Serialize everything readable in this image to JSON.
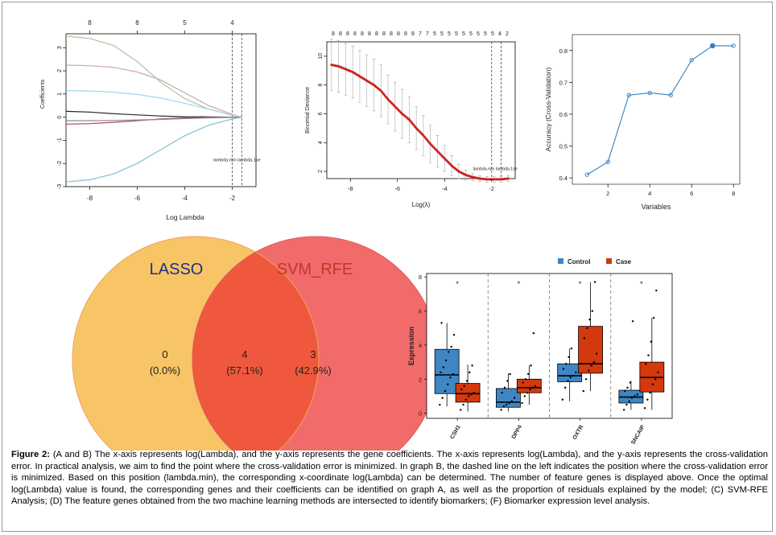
{
  "caption": {
    "label": "Figure 2:",
    "text": " (A and B) The x-axis represents log(Lambda), and the y-axis represents the gene coefficients. The x-axis represents log(Lambda), and the y-axis represents the cross-validation error. In practical analysis, we aim to find the point where the cross-validation error is minimized. In graph B, the dashed line on the left indicates the position where the cross-validation error is minimized. Based on this position (lambda.min), the corresponding x-coordinate log(Lambda) can be determined. The number of feature genes is displayed above. Once the optimal log(Lambda) value is found, the corresponding genes and their coefficients can be identified on graph A, as well as the proportion of residuals explained by the model; (C) SVM-RFE Analysis; (D) The feature genes obtained from the two machine learning methods are intersected to identify biomarkers; (F) Biomarker expression level analysis."
  },
  "chart_data": [
    {
      "type": "line",
      "panel": "A",
      "xlabel": "Log Lambda",
      "ylabel": "Coefficients",
      "xlim": [
        -9,
        -1
      ],
      "ylim": [
        -3,
        3.6
      ],
      "x_ticks": [
        "-8",
        "-6",
        "-4",
        "-2"
      ],
      "y_ticks": [
        "-3",
        "-2",
        "-1",
        "0",
        "1",
        "2",
        "3"
      ],
      "top_ticks": [
        "8",
        "8",
        "5",
        "4"
      ],
      "top_tick_x": [
        -8,
        -6,
        -4,
        -2
      ],
      "vlines": [
        -2,
        -1.6
      ],
      "vline_label": "lambda.min  lambda.1se",
      "series": [
        {
          "color": "#a7c79a",
          "x": [
            -9,
            -8,
            -7,
            -6,
            -5,
            -4,
            -3,
            -2,
            -1.6
          ],
          "values": [
            3.5,
            3.4,
            3.1,
            2.4,
            1.5,
            0.8,
            0.35,
            0.08,
            0
          ]
        },
        {
          "color": "#c6a6b6",
          "x": [
            -9,
            -8,
            -7,
            -6,
            -5,
            -4,
            -3,
            -2,
            -1.6
          ],
          "values": [
            2.25,
            2.22,
            2.15,
            1.95,
            1.6,
            1.05,
            0.5,
            0.12,
            0
          ]
        },
        {
          "color": "#9fd7e8",
          "x": [
            -9,
            -8,
            -7,
            -6,
            -5,
            -4,
            -3,
            -2,
            -1.6
          ],
          "values": [
            1.15,
            1.13,
            1.08,
            0.98,
            0.82,
            0.6,
            0.35,
            0.1,
            0
          ]
        },
        {
          "color": "#222222",
          "x": [
            -9,
            -8,
            -7,
            -6,
            -5,
            -4,
            -3,
            -2,
            -1.6
          ],
          "values": [
            0.25,
            0.22,
            0.15,
            0.1,
            0.05,
            0.02,
            0.01,
            0,
            0
          ]
        },
        {
          "color": "#b04060",
          "x": [
            -9,
            -8,
            -7,
            -6,
            -5,
            -4,
            -3,
            -2,
            -1.6
          ],
          "values": [
            -0.3,
            -0.28,
            -0.22,
            -0.15,
            -0.08,
            -0.03,
            -0.01,
            0,
            0
          ]
        },
        {
          "color": "#8e8e8e",
          "x": [
            -9,
            -8,
            -7,
            -6,
            -5,
            -4,
            -3,
            -2,
            -1.6
          ],
          "values": [
            -0.15,
            -0.15,
            -0.14,
            -0.12,
            -0.1,
            -0.06,
            -0.03,
            -0.01,
            0
          ]
        },
        {
          "color": "#7fc2d0",
          "x": [
            -9,
            -8,
            -7,
            -6,
            -5,
            -4,
            -3,
            -2,
            -1.6
          ],
          "values": [
            -2.8,
            -2.7,
            -2.45,
            -2.0,
            -1.4,
            -0.8,
            -0.35,
            -0.08,
            0
          ]
        }
      ]
    },
    {
      "type": "scatter",
      "panel": "B",
      "xlabel": "Log(λ)",
      "ylabel": "Binomial Deviance",
      "xlim": [
        -9,
        -1
      ],
      "ylim": [
        1.5,
        11
      ],
      "x_ticks": [
        "-8",
        "-6",
        "-4",
        "-2"
      ],
      "y_ticks": [
        "2",
        "4",
        "6",
        "8",
        "10"
      ],
      "top_numbers": [
        "8",
        "8",
        "8",
        "8",
        "8",
        "8",
        "8",
        "8",
        "8",
        "8",
        "8",
        "8",
        "7",
        "7",
        "5",
        "5",
        "5",
        "5",
        "5",
        "5",
        "5",
        "5",
        "5",
        "4",
        "2"
      ],
      "vlines": [
        -2,
        -1.6
      ],
      "vline_label": "lambda.min  lambda.1se",
      "x": [
        -8.8,
        -8.5,
        -8.2,
        -7.9,
        -7.6,
        -7.3,
        -7.0,
        -6.7,
        -6.4,
        -6.1,
        -5.8,
        -5.5,
        -5.2,
        -4.9,
        -4.6,
        -4.3,
        -4.0,
        -3.7,
        -3.4,
        -3.1,
        -2.8,
        -2.5,
        -2.2,
        -1.9,
        -1.6,
        -1.3
      ],
      "values": [
        9.4,
        9.3,
        9.1,
        8.9,
        8.6,
        8.3,
        8.0,
        7.6,
        7.0,
        6.5,
        6.0,
        5.6,
        5.0,
        4.5,
        3.9,
        3.4,
        2.9,
        2.4,
        2.0,
        1.75,
        1.6,
        1.5,
        1.45,
        1.45,
        1.45,
        1.5
      ],
      "error": [
        1.8,
        1.8,
        1.8,
        1.8,
        1.8,
        1.8,
        1.8,
        1.8,
        1.7,
        1.7,
        1.7,
        1.6,
        1.5,
        1.4,
        1.3,
        1.1,
        0.9,
        0.7,
        0.5,
        0.35,
        0.25,
        0.2,
        0.2,
        0.2,
        0.2,
        0.2
      ],
      "point_color": "#cc2222"
    },
    {
      "type": "line",
      "panel": "C",
      "xlabel": "Variables",
      "ylabel": "Accuracy (Cross-Validation)",
      "xlim": [
        0.3,
        8.3
      ],
      "ylim": [
        0.38,
        0.85
      ],
      "x_ticks": [
        "2",
        "4",
        "6",
        "8"
      ],
      "y_ticks": [
        "0.4",
        "0.5",
        "0.6",
        "0.7",
        "0.8"
      ],
      "x": [
        1,
        2,
        3,
        4,
        5,
        6,
        7,
        8
      ],
      "values": [
        0.41,
        0.45,
        0.66,
        0.667,
        0.66,
        0.77,
        0.815,
        0.815
      ],
      "color": "#2f7fc1",
      "highlight_index": 6
    },
    {
      "type": "venn",
      "panel": "D",
      "sets": [
        {
          "name": "LASSO",
          "color": "#f7c566",
          "label_color": "#1f2d8a"
        },
        {
          "name": "SVM_RFE",
          "color": "#f26b6b",
          "label_color": "#c0392b"
        }
      ],
      "regions": [
        {
          "count": "0",
          "pct": "(0.0%)"
        },
        {
          "count": "4",
          "pct": "(57.1%)",
          "color": "#f0583d"
        },
        {
          "count": "3",
          "pct": "(42.9%)"
        }
      ]
    },
    {
      "type": "box",
      "panel": "F",
      "ylabel": "Expression",
      "ylim": [
        -0.3,
        8.2
      ],
      "y_ticks": [
        "0",
        "2",
        "4",
        "6",
        "8"
      ],
      "legend": [
        {
          "name": "Control",
          "color": "#3f86c4"
        },
        {
          "name": "Case",
          "color": "#d4380d"
        }
      ],
      "categories": [
        "CSH1",
        "DPP4",
        "OXTR",
        "SNCAIP"
      ],
      "sig": [
        "*",
        "*",
        "*",
        "*"
      ],
      "boxes": [
        {
          "group": "Control",
          "min": 0.4,
          "q1": 1.15,
          "median": 2.25,
          "q3": 3.75,
          "max": 5.3,
          "points": [
            0.5,
            0.9,
            1.3,
            1.7,
            2.1,
            2.3,
            2.4,
            2.7,
            3.1,
            3.6,
            3.9,
            4.6,
            5.3
          ]
        },
        {
          "group": "Case",
          "min": 0.1,
          "q1": 0.65,
          "median": 1.15,
          "q3": 1.75,
          "max": 2.85,
          "points": [
            0.2,
            0.5,
            0.8,
            1.0,
            1.1,
            1.2,
            1.4,
            1.6,
            1.9,
            2.4,
            2.8
          ]
        },
        {
          "group": "Control",
          "min": 0.1,
          "q1": 0.35,
          "median": 0.65,
          "q3": 1.45,
          "max": 2.35,
          "points": [
            0.2,
            0.4,
            0.5,
            0.6,
            0.7,
            0.9,
            1.2,
            1.5,
            1.9,
            2.3
          ]
        },
        {
          "group": "Case",
          "min": 0.5,
          "q1": 1.2,
          "median": 1.5,
          "q3": 2.0,
          "max": 2.8,
          "points": [
            0.6,
            1.0,
            1.2,
            1.4,
            1.5,
            1.6,
            1.8,
            2.0,
            2.3,
            2.8,
            4.7
          ]
        },
        {
          "group": "Control",
          "min": 0.7,
          "q1": 1.85,
          "median": 2.2,
          "q3": 2.9,
          "max": 3.8,
          "points": [
            0.8,
            1.5,
            1.9,
            2.1,
            2.2,
            2.4,
            2.6,
            2.9,
            3.3,
            3.8
          ]
        },
        {
          "group": "Case",
          "min": 1.3,
          "q1": 2.35,
          "median": 2.9,
          "q3": 5.1,
          "max": 7.7,
          "points": [
            1.3,
            2.0,
            2.5,
            2.8,
            3.0,
            3.5,
            4.4,
            5.0,
            5.5,
            6.0,
            7.7
          ]
        },
        {
          "group": "Control",
          "min": 0.2,
          "q1": 0.6,
          "median": 0.95,
          "q3": 1.35,
          "max": 1.9,
          "points": [
            0.2,
            0.5,
            0.7,
            0.9,
            1.0,
            1.1,
            1.3,
            1.5,
            1.8,
            5.4
          ]
        },
        {
          "group": "Case",
          "min": 0.2,
          "q1": 1.25,
          "median": 2.1,
          "q3": 3.0,
          "max": 5.6,
          "points": [
            0.3,
            0.8,
            1.2,
            1.7,
            2.0,
            2.4,
            2.9,
            3.4,
            4.2,
            5.6,
            7.2
          ]
        }
      ]
    }
  ]
}
